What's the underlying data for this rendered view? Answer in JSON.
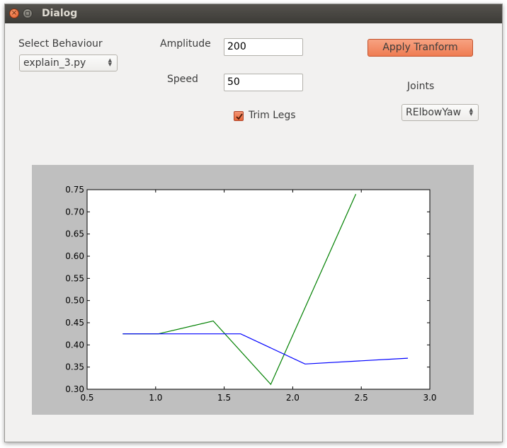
{
  "window": {
    "title": "Dialog"
  },
  "controls": {
    "behaviour_label": "Select Behaviour",
    "behaviour_value": "explain_3.py",
    "amplitude_label": "Amplitude",
    "amplitude_value": "200",
    "speed_label": "Speed",
    "speed_value": "50",
    "trim_legs_label": "Trim Legs",
    "trim_legs_checked": true,
    "apply_label": "Apply Tranform",
    "joints_label": "Joints",
    "joints_value": "RElbowYaw"
  },
  "colors": {
    "accent": "#ef7c52",
    "series_green": "#008000",
    "series_blue": "#0000ff"
  },
  "chart_data": {
    "type": "line",
    "xlim": [
      0.5,
      3.0
    ],
    "ylim": [
      0.3,
      0.75
    ],
    "xticks": [
      "0.5",
      "1.0",
      "1.5",
      "2.0",
      "2.5",
      "3.0"
    ],
    "yticks": [
      "0.30",
      "0.35",
      "0.40",
      "0.45",
      "0.50",
      "0.55",
      "0.60",
      "0.65",
      "0.70",
      "0.75"
    ],
    "grid": false,
    "series": [
      {
        "color": "#008000",
        "x": [
          0.76,
          1.02,
          1.42,
          1.84,
          2.46
        ],
        "y": [
          0.425,
          0.425,
          0.454,
          0.311,
          0.74
        ]
      },
      {
        "color": "#0000ff",
        "x": [
          0.76,
          1.62,
          2.09,
          2.84
        ],
        "y": [
          0.425,
          0.425,
          0.357,
          0.37
        ]
      }
    ]
  }
}
